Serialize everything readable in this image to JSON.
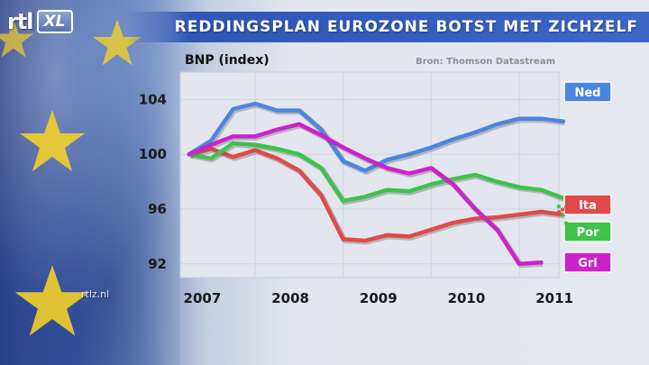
{
  "logo": {
    "rtl": "rtl",
    "xl": "XL"
  },
  "header": {
    "title": "REDDINGSPLAN EUROZONE BOTST MET ZICHZELF"
  },
  "watermark": "rtlz.nl",
  "colors": {
    "accent": "#3d66c6",
    "Ned": "#4a86e0",
    "Ita": "#e04a4a",
    "Por": "#3ec24a",
    "Grl": "#cc22cc"
  },
  "chart_data": {
    "type": "line",
    "ylabel": "BNP (index)",
    "source": "Bron: Thomson Datastream",
    "ylim": [
      91,
      106
    ],
    "xlim": [
      2006.9,
      2011.2
    ],
    "yticks": [
      104,
      100,
      96,
      92
    ],
    "xticks": [
      2007,
      2008,
      2009,
      2010,
      2011
    ],
    "grid": true,
    "legend": "right",
    "series": [
      {
        "name": "Ned",
        "color": "#4a86e0",
        "x": [
          2007.0,
          2007.25,
          2007.5,
          2007.75,
          2008.0,
          2008.25,
          2008.5,
          2008.75,
          2009.0,
          2009.25,
          2009.5,
          2009.75,
          2010.0,
          2010.25,
          2010.5,
          2010.75,
          2011.0,
          2011.25
        ],
        "y": [
          100.0,
          101.0,
          103.3,
          103.7,
          103.2,
          103.2,
          101.8,
          99.5,
          98.8,
          99.6,
          100.0,
          100.5,
          101.1,
          101.6,
          102.2,
          102.6,
          102.6,
          102.4
        ]
      },
      {
        "name": "Ita",
        "color": "#e04a4a",
        "x": [
          2007.0,
          2007.25,
          2007.5,
          2007.75,
          2008.0,
          2008.25,
          2008.5,
          2008.75,
          2009.0,
          2009.25,
          2009.5,
          2009.75,
          2010.0,
          2010.25,
          2010.5,
          2010.75,
          2011.0,
          2011.25
        ],
        "y": [
          100.0,
          100.4,
          99.8,
          100.3,
          99.7,
          98.8,
          97.0,
          93.8,
          93.7,
          94.1,
          94.0,
          94.5,
          95.0,
          95.3,
          95.4,
          95.6,
          95.8,
          95.6
        ]
      },
      {
        "name": "Por",
        "color": "#3ec24a",
        "x": [
          2007.0,
          2007.25,
          2007.5,
          2007.75,
          2008.0,
          2008.25,
          2008.5,
          2008.75,
          2009.0,
          2009.25,
          2009.5,
          2009.75,
          2010.0,
          2010.25,
          2010.5,
          2010.75,
          2011.0,
          2011.25
        ],
        "y": [
          100.0,
          99.7,
          100.8,
          100.7,
          100.4,
          100.0,
          99.0,
          96.6,
          96.9,
          97.4,
          97.3,
          97.8,
          98.2,
          98.5,
          98.0,
          97.6,
          97.4,
          96.8
        ]
      },
      {
        "name": "Grl",
        "color": "#cc22cc",
        "x": [
          2007.0,
          2007.25,
          2007.5,
          2007.75,
          2008.0,
          2008.25,
          2008.5,
          2008.75,
          2009.0,
          2009.25,
          2009.5,
          2009.75,
          2010.0,
          2010.25,
          2010.5,
          2010.75,
          2011.0
        ],
        "y": [
          100.0,
          100.7,
          101.3,
          101.3,
          101.8,
          102.2,
          101.4,
          100.5,
          99.7,
          99.0,
          98.6,
          99.0,
          97.8,
          96.0,
          94.5,
          92.0,
          92.1
        ]
      }
    ]
  }
}
